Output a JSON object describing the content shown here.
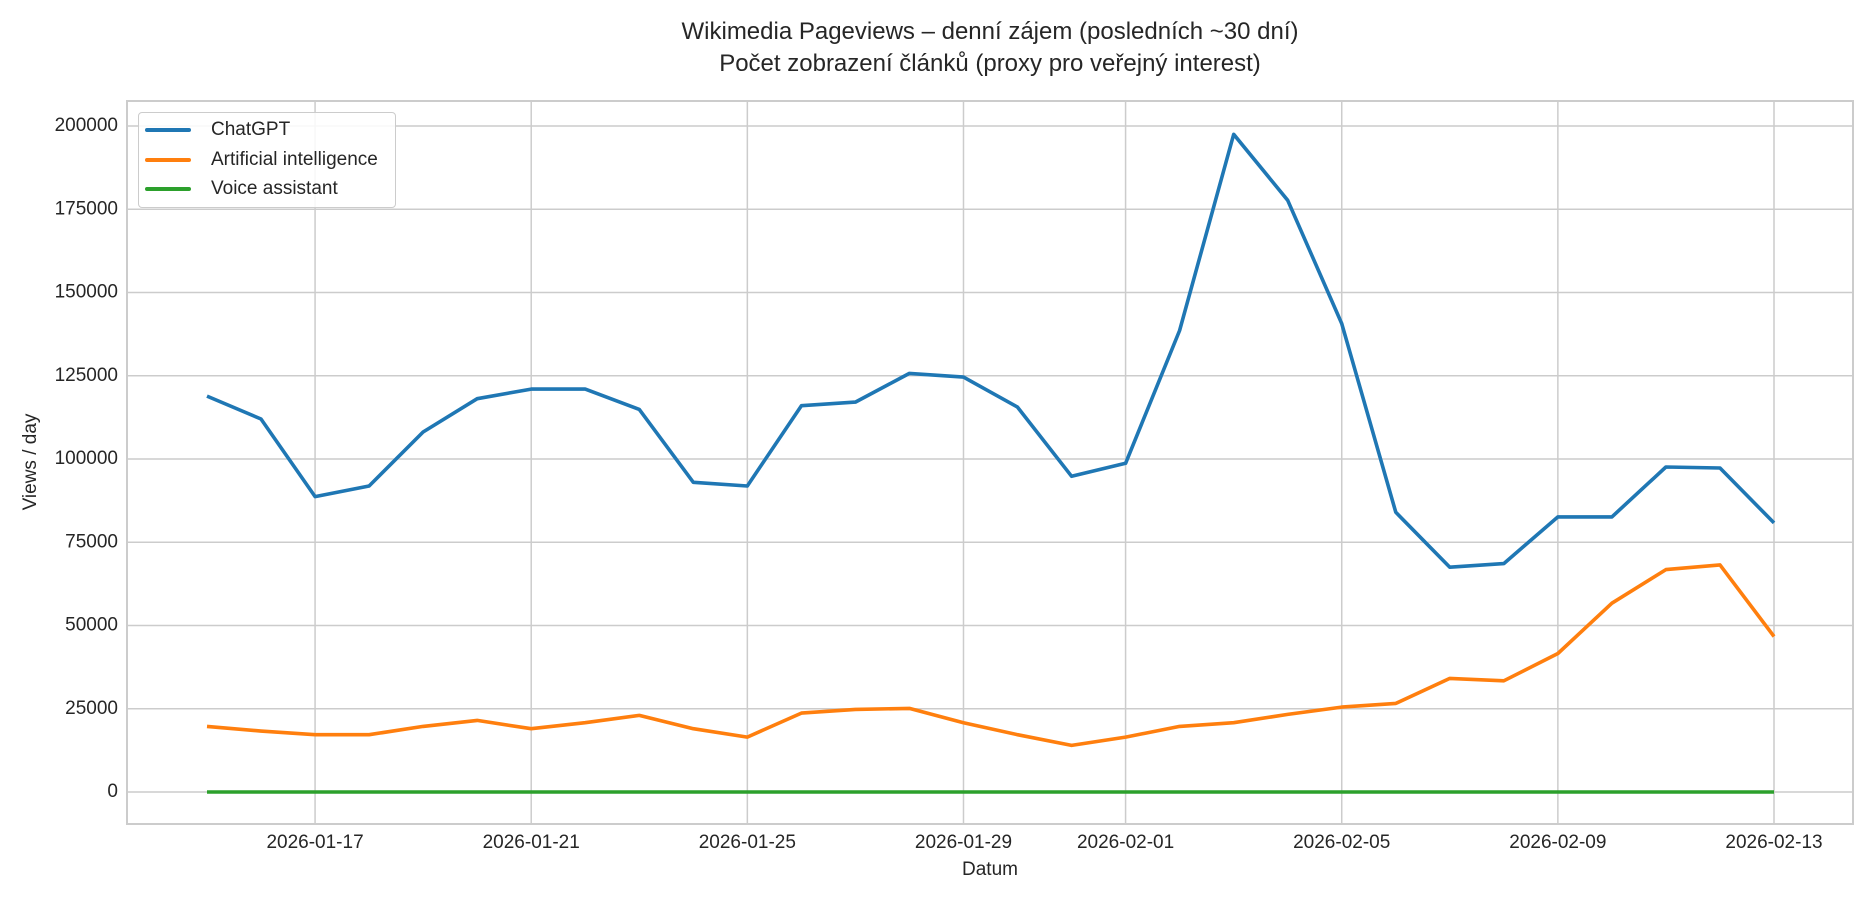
{
  "title": {
    "line1": "Wikimedia Pageviews – denní zájem (posledních ~30 dní)",
    "line2": "Počet zobrazení článků (proxy pro veřejný interest)"
  },
  "axes": {
    "xlabel": "Datum",
    "ylabel": "Views / day",
    "yticks": [
      "0",
      "25000",
      "50000",
      "75000",
      "100000",
      "125000",
      "150000",
      "175000",
      "200000"
    ],
    "xticks": [
      "2026-01-17",
      "2026-01-21",
      "2026-01-25",
      "2026-01-29",
      "2026-02-01",
      "2026-02-05",
      "2026-02-09",
      "2026-02-13"
    ]
  },
  "legend": {
    "items": [
      {
        "label": "ChatGPT",
        "color": "#1f77b4"
      },
      {
        "label": "Artificial intelligence",
        "color": "#ff7f0e"
      },
      {
        "label": "Voice assistant",
        "color": "#2ca02c"
      }
    ]
  },
  "chart_data": {
    "type": "line",
    "title": "Wikimedia Pageviews – denní zájem (posledních ~30 dní)\nPočet zobrazení článků (proxy pro veřejný interest)",
    "xlabel": "Datum",
    "ylabel": "Views / day",
    "ylim": [
      -10000,
      208000
    ],
    "grid": true,
    "legend_position": "upper left",
    "x": [
      "2026-01-15",
      "2026-01-16",
      "2026-01-17",
      "2026-01-18",
      "2026-01-19",
      "2026-01-20",
      "2026-01-21",
      "2026-01-22",
      "2026-01-23",
      "2026-01-24",
      "2026-01-25",
      "2026-01-26",
      "2026-01-27",
      "2026-01-28",
      "2026-01-29",
      "2026-01-30",
      "2026-01-31",
      "2026-02-01",
      "2026-02-02",
      "2026-02-03",
      "2026-02-04",
      "2026-02-05",
      "2026-02-06",
      "2026-02-07",
      "2026-02-08",
      "2026-02-09",
      "2026-02-10",
      "2026-02-11",
      "2026-02-12",
      "2026-02-13"
    ],
    "series": [
      {
        "name": "ChatGPT",
        "color": "#1f77b4",
        "values": [
          118900,
          112000,
          88700,
          91900,
          108100,
          118100,
          121000,
          121000,
          114900,
          93000,
          91900,
          116000,
          117100,
          125700,
          124600,
          115600,
          94800,
          98700,
          138600,
          197500,
          177700,
          140700,
          84000,
          67500,
          68600,
          82600,
          82600,
          97600,
          97300,
          80800
        ]
      },
      {
        "name": "Artificial intelligence",
        "color": "#ff7f0e",
        "values": [
          19700,
          18300,
          17200,
          17200,
          19700,
          21500,
          19000,
          20800,
          23000,
          19000,
          16500,
          23700,
          24800,
          25100,
          20800,
          17200,
          14000,
          16500,
          19700,
          20800,
          23300,
          25500,
          26600,
          34100,
          33400,
          41600,
          56700,
          66800,
          68200,
          46700
        ]
      },
      {
        "name": "Voice assistant",
        "color": "#2ca02c",
        "values": [
          0,
          0,
          0,
          0,
          0,
          0,
          0,
          0,
          0,
          0,
          0,
          0,
          0,
          0,
          0,
          0,
          0,
          0,
          0,
          0,
          0,
          0,
          0,
          0,
          0,
          0,
          0,
          0,
          0,
          0
        ]
      }
    ]
  }
}
